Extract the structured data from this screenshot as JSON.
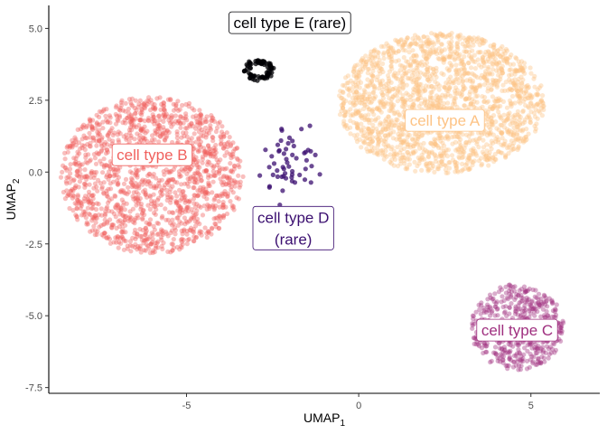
{
  "chart_data": {
    "type": "scatter",
    "xlabel": "UMAP",
    "xlabel_sub": "1",
    "ylabel": "UMAP",
    "ylabel_sub": "2",
    "xlim": [
      -9.0,
      7.0
    ],
    "ylim": [
      -7.7,
      5.8
    ],
    "x_ticks": [
      -5,
      0,
      5
    ],
    "x_tick_labels": [
      "-5",
      "0",
      "5"
    ],
    "y_ticks": [
      -7.5,
      -5.0,
      -2.5,
      0.0,
      2.5,
      5.0
    ],
    "y_tick_labels": [
      "-7.5",
      "-5.0",
      "-2.5",
      "0.0",
      "2.5",
      "5.0"
    ],
    "grid": false,
    "point_alpha": 0.4,
    "clusters": [
      {
        "name": "cell type A",
        "label_lines": [
          "cell type A"
        ],
        "color": "#FDC385",
        "center": [
          2.4,
          2.4
        ],
        "radius": [
          3.0,
          2.45
        ],
        "n_points": 1900,
        "label_pos": [
          2.5,
          1.8
        ]
      },
      {
        "name": "cell type B",
        "label_lines": [
          "cell type B"
        ],
        "color": "#F0605D",
        "center": [
          -6.0,
          -0.1
        ],
        "radius": [
          2.65,
          2.75
        ],
        "n_points": 1500,
        "label_pos": [
          -6.0,
          0.6
        ]
      },
      {
        "name": "cell type C",
        "label_lines": [
          "cell type C"
        ],
        "color": "#9F2F7F",
        "center": [
          4.6,
          -5.4
        ],
        "radius": [
          1.35,
          1.5
        ],
        "n_points": 500,
        "label_pos": [
          4.6,
          -5.5
        ]
      },
      {
        "name": "cell type D (rare)",
        "label_lines": [
          "cell type D",
          "(rare)"
        ],
        "color": "#3B0F70",
        "center": [
          -2.0,
          0.4
        ],
        "radius": [
          0.75,
          1.25
        ],
        "n_points": 55,
        "label_pos": [
          -1.9,
          -1.95
        ]
      },
      {
        "name": "cell type E (rare)",
        "label_lines": [
          "cell type E (rare)"
        ],
        "color": "#000004",
        "center": [
          -2.9,
          3.55
        ],
        "radius": [
          0.45,
          0.4
        ],
        "n_points": 75,
        "label_pos": [
          -2.0,
          5.2
        ]
      }
    ]
  }
}
